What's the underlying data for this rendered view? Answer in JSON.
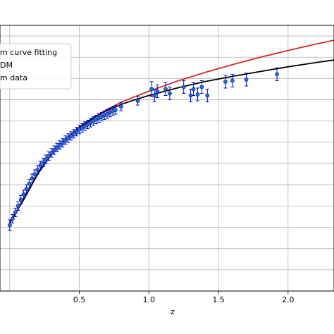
{
  "chart_data": {
    "type": "scatter",
    "xlabel": "z",
    "ylabel": "",
    "xlim": [
      -0.07,
      2.33
    ],
    "ylim": [
      35.0,
      47.5
    ],
    "grid": true,
    "x_ticks": [
      0.5,
      1.0,
      1.5,
      2.0
    ],
    "x_tick_labels": [
      "0.5",
      "1.0",
      "1.5",
      "2.0"
    ],
    "legend": {
      "placement": "top-left",
      "entries": [
        "m curve fitting",
        "DM",
        "m data"
      ]
    },
    "series": [
      {
        "name": "m curve fitting",
        "kind": "line",
        "color": "#d62728",
        "x": [
          0.0,
          0.1,
          0.2,
          0.3,
          0.4,
          0.5,
          0.6,
          0.7,
          0.8,
          0.9,
          1.0,
          1.2,
          1.4,
          1.6,
          1.8,
          2.0,
          2.2,
          2.33
        ],
        "y": [
          38.2,
          39.3,
          40.5,
          41.45,
          42.15,
          42.7,
          43.15,
          43.55,
          43.88,
          44.15,
          44.4,
          44.87,
          45.28,
          45.65,
          46.0,
          46.32,
          46.62,
          46.8
        ]
      },
      {
        "name": "DM",
        "kind": "line",
        "color": "#000000",
        "x": [
          0.0,
          0.1,
          0.2,
          0.3,
          0.4,
          0.5,
          0.6,
          0.7,
          0.8,
          0.9,
          1.0,
          1.2,
          1.4,
          1.6,
          1.8,
          2.0,
          2.2,
          2.33
        ],
        "y": [
          38.2,
          39.3,
          40.5,
          41.45,
          42.15,
          42.7,
          43.15,
          43.5,
          43.78,
          44.0,
          44.2,
          44.55,
          44.85,
          45.1,
          45.33,
          45.55,
          45.75,
          45.87
        ]
      },
      {
        "name": "m data",
        "kind": "errorbar",
        "color": "#1f77b4",
        "ecolor": "#0000cd",
        "x": [
          0.0,
          0.02,
          0.04,
          0.06,
          0.08,
          0.1,
          0.12,
          0.14,
          0.16,
          0.18,
          0.2,
          0.22,
          0.24,
          0.26,
          0.28,
          0.3,
          0.32,
          0.34,
          0.36,
          0.38,
          0.4,
          0.42,
          0.44,
          0.46,
          0.48,
          0.5,
          0.52,
          0.54,
          0.56,
          0.58,
          0.6,
          0.62,
          0.64,
          0.66,
          0.68,
          0.7,
          0.72,
          0.74,
          0.76,
          0.8,
          0.92,
          1.02,
          1.04,
          1.06,
          1.12,
          1.15,
          1.25,
          1.3,
          1.32,
          1.35,
          1.38,
          1.42,
          1.55,
          1.6,
          1.7,
          1.92
        ],
        "y": [
          38.1,
          38.4,
          38.7,
          39.0,
          39.3,
          39.55,
          39.8,
          40.05,
          40.3,
          40.5,
          40.7,
          40.9,
          41.05,
          41.2,
          41.35,
          41.5,
          41.63,
          41.75,
          41.87,
          41.97,
          42.1,
          42.2,
          42.3,
          42.4,
          42.5,
          42.6,
          42.68,
          42.76,
          42.84,
          42.92,
          43.0,
          43.07,
          43.14,
          43.2,
          43.27,
          43.33,
          43.4,
          43.46,
          43.52,
          43.68,
          43.95,
          44.5,
          44.2,
          44.4,
          44.5,
          44.3,
          44.6,
          44.2,
          44.5,
          44.25,
          44.6,
          44.2,
          44.85,
          44.9,
          44.95,
          45.2
        ],
        "yerr": [
          0.25,
          0.2,
          0.2,
          0.2,
          0.2,
          0.2,
          0.2,
          0.2,
          0.2,
          0.2,
          0.2,
          0.2,
          0.2,
          0.2,
          0.2,
          0.2,
          0.2,
          0.2,
          0.2,
          0.2,
          0.2,
          0.2,
          0.2,
          0.2,
          0.2,
          0.2,
          0.2,
          0.2,
          0.2,
          0.2,
          0.2,
          0.2,
          0.2,
          0.2,
          0.2,
          0.2,
          0.2,
          0.2,
          0.2,
          0.2,
          0.2,
          0.35,
          0.3,
          0.3,
          0.3,
          0.3,
          0.3,
          0.3,
          0.3,
          0.3,
          0.3,
          0.3,
          0.3,
          0.3,
          0.3,
          0.3
        ]
      }
    ]
  }
}
